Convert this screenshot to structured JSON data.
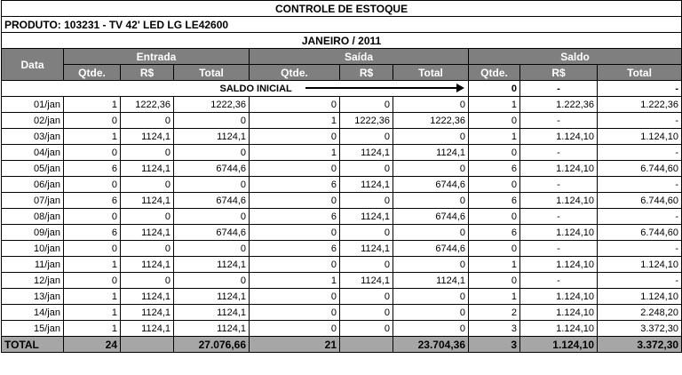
{
  "title": "CONTROLE DE ESTOQUE",
  "produto_label": "PRODUTO:",
  "produto_value": "103231 - TV 42' LED LG LE42600",
  "month": "JANEIRO / 2011",
  "groups": {
    "data": "Data",
    "entrada": "Entrada",
    "saida": "Saída",
    "saldo": "Saldo"
  },
  "subheaders": {
    "qtde": "Qtde.",
    "rs": "R$",
    "total": "Total"
  },
  "saldo_inicial": {
    "label": "SALDO INICIAL",
    "qtde": "0",
    "rs": "-",
    "total": "-"
  },
  "rows": [
    {
      "date": "01/jan",
      "e_q": "1",
      "e_rs": "1222,36",
      "e_t": "1222,36",
      "s_q": "0",
      "s_rs": "0",
      "s_t": "0",
      "b_q": "1",
      "b_rs": "1.222,36",
      "b_t": "1.222,36"
    },
    {
      "date": "02/jan",
      "e_q": "0",
      "e_rs": "0",
      "e_t": "0",
      "s_q": "1",
      "s_rs": "1222,36",
      "s_t": "1222,36",
      "b_q": "0",
      "b_rs": "-",
      "b_t": "-"
    },
    {
      "date": "03/jan",
      "e_q": "1",
      "e_rs": "1124,1",
      "e_t": "1124,1",
      "s_q": "0",
      "s_rs": "0",
      "s_t": "0",
      "b_q": "1",
      "b_rs": "1.124,10",
      "b_t": "1.124,10"
    },
    {
      "date": "04/jan",
      "e_q": "0",
      "e_rs": "0",
      "e_t": "0",
      "s_q": "1",
      "s_rs": "1124,1",
      "s_t": "1124,1",
      "b_q": "0",
      "b_rs": "-",
      "b_t": "-"
    },
    {
      "date": "05/jan",
      "e_q": "6",
      "e_rs": "1124,1",
      "e_t": "6744,6",
      "s_q": "0",
      "s_rs": "0",
      "s_t": "0",
      "b_q": "6",
      "b_rs": "1.124,10",
      "b_t": "6.744,60"
    },
    {
      "date": "06/jan",
      "e_q": "0",
      "e_rs": "0",
      "e_t": "0",
      "s_q": "6",
      "s_rs": "1124,1",
      "s_t": "6744,6",
      "b_q": "0",
      "b_rs": "-",
      "b_t": "-"
    },
    {
      "date": "07/jan",
      "e_q": "6",
      "e_rs": "1124,1",
      "e_t": "6744,6",
      "s_q": "0",
      "s_rs": "0",
      "s_t": "0",
      "b_q": "6",
      "b_rs": "1.124,10",
      "b_t": "6.744,60"
    },
    {
      "date": "08/jan",
      "e_q": "0",
      "e_rs": "0",
      "e_t": "0",
      "s_q": "6",
      "s_rs": "1124,1",
      "s_t": "6744,6",
      "b_q": "0",
      "b_rs": "-",
      "b_t": "-"
    },
    {
      "date": "09/jan",
      "e_q": "6",
      "e_rs": "1124,1",
      "e_t": "6744,6",
      "s_q": "0",
      "s_rs": "0",
      "s_t": "0",
      "b_q": "6",
      "b_rs": "1.124,10",
      "b_t": "6.744,60"
    },
    {
      "date": "10/jan",
      "e_q": "0",
      "e_rs": "0",
      "e_t": "0",
      "s_q": "6",
      "s_rs": "1124,1",
      "s_t": "6744,6",
      "b_q": "0",
      "b_rs": "-",
      "b_t": "-"
    },
    {
      "date": "11/jan",
      "e_q": "1",
      "e_rs": "1124,1",
      "e_t": "1124,1",
      "s_q": "0",
      "s_rs": "0",
      "s_t": "0",
      "b_q": "1",
      "b_rs": "1.124,10",
      "b_t": "1.124,10"
    },
    {
      "date": "12/jan",
      "e_q": "0",
      "e_rs": "0",
      "e_t": "0",
      "s_q": "1",
      "s_rs": "1124,1",
      "s_t": "1124,1",
      "b_q": "0",
      "b_rs": "-",
      "b_t": "-"
    },
    {
      "date": "13/jan",
      "e_q": "1",
      "e_rs": "1124,1",
      "e_t": "1124,1",
      "s_q": "0",
      "s_rs": "0",
      "s_t": "0",
      "b_q": "1",
      "b_rs": "1.124,10",
      "b_t": "1.124,10"
    },
    {
      "date": "14/jan",
      "e_q": "1",
      "e_rs": "1124,1",
      "e_t": "1124,1",
      "s_q": "0",
      "s_rs": "0",
      "s_t": "0",
      "b_q": "2",
      "b_rs": "1.124,10",
      "b_t": "2.248,20"
    },
    {
      "date": "15/jan",
      "e_q": "1",
      "e_rs": "1124,1",
      "e_t": "1124,1",
      "s_q": "0",
      "s_rs": "0",
      "s_t": "0",
      "b_q": "3",
      "b_rs": "1.124,10",
      "b_t": "3.372,30"
    }
  ],
  "total": {
    "label": "TOTAL",
    "e_q": "24",
    "e_t": "27.076,66",
    "s_q": "21",
    "s_t": "23.704,36",
    "b_q": "3",
    "b_rs": "1.124,10",
    "b_t": "3.372,30"
  },
  "colors": {
    "header_bg": "#7f7f7f",
    "total_bg": "#a6a6a6"
  }
}
